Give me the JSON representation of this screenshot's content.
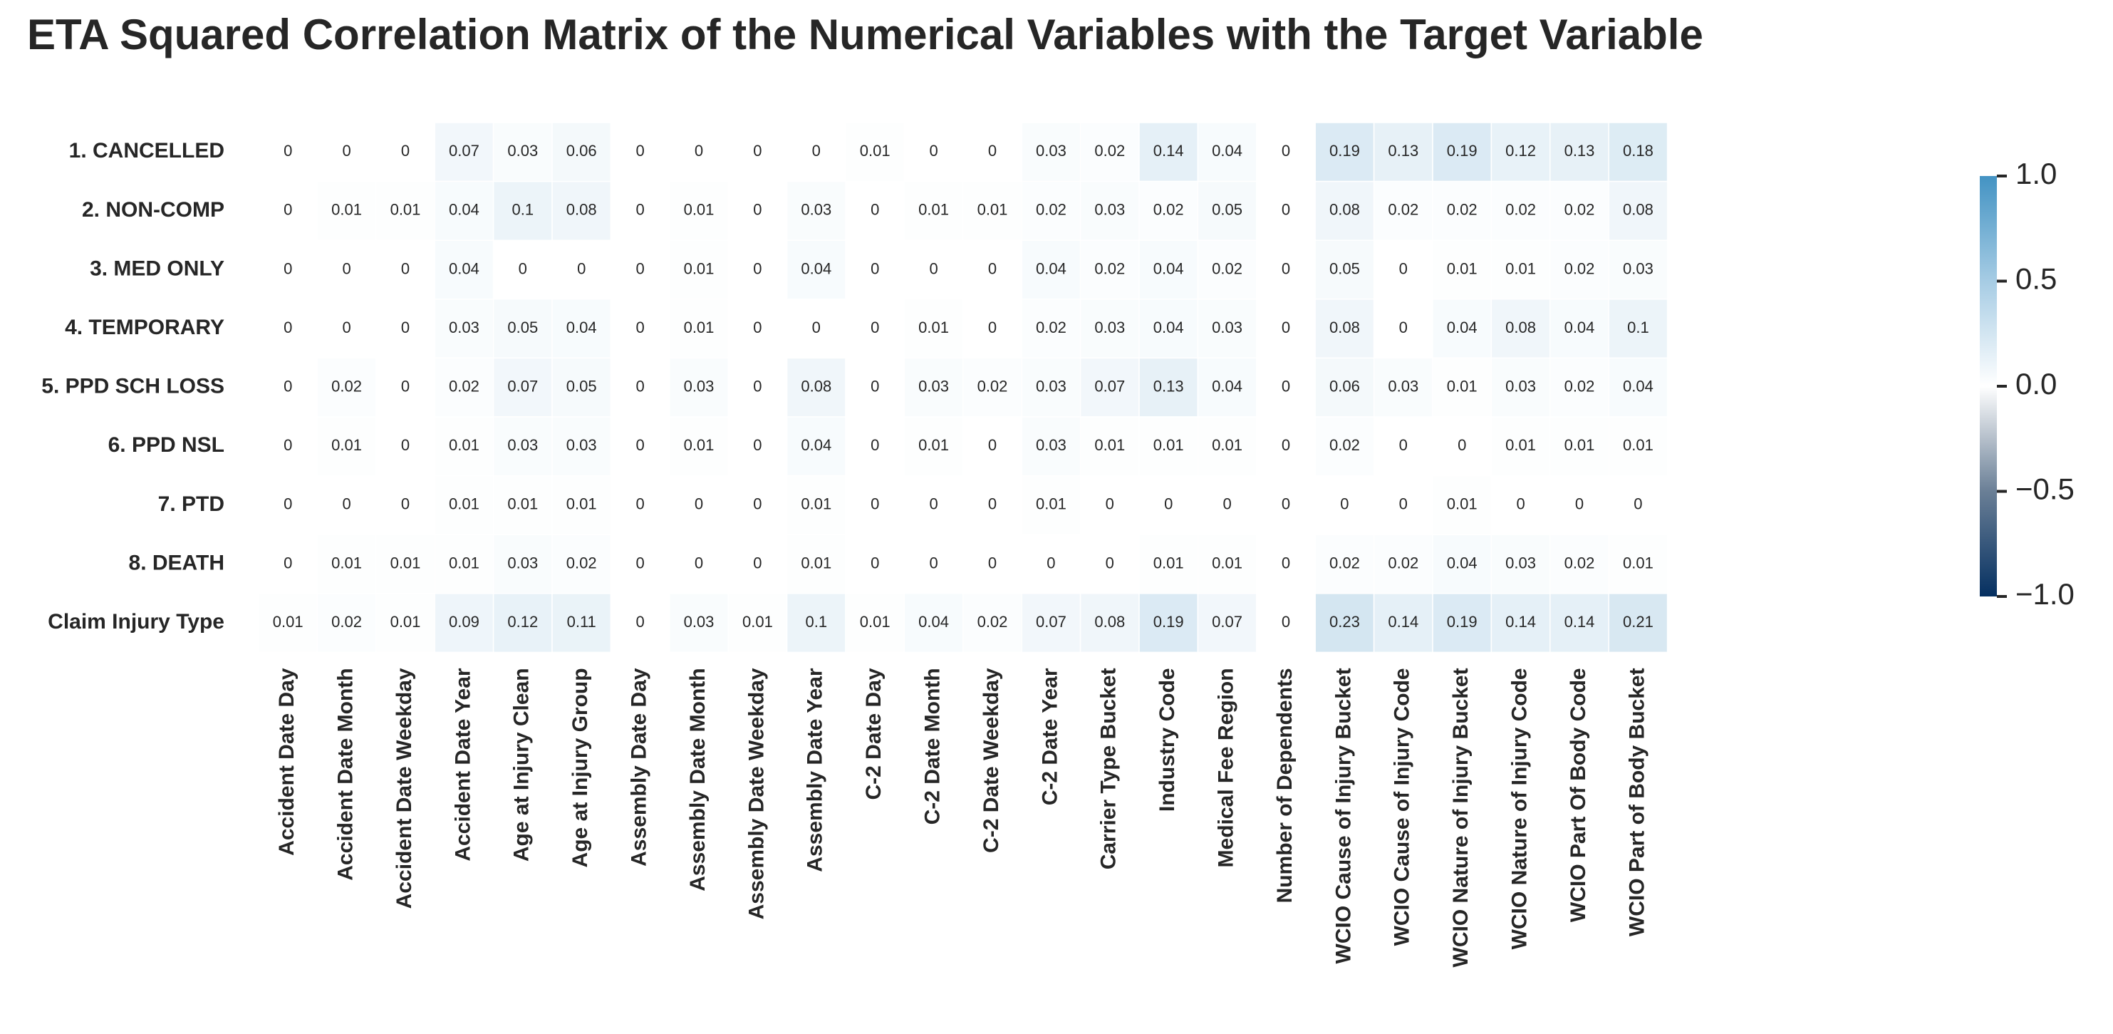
{
  "chart_data": {
    "type": "heatmap",
    "title": "ETA Squared Correlation Matrix of the Numerical Variables with the Target Variable",
    "rows": [
      "1. CANCELLED",
      "2. NON-COMP",
      "3. MED ONLY",
      "4. TEMPORARY",
      "5. PPD SCH LOSS",
      "6. PPD NSL",
      "7. PTD",
      "8. DEATH",
      "Claim Injury Type"
    ],
    "columns": [
      "Accident Date Day",
      "Accident Date Month",
      "Accident Date Weekday",
      "Accident Date Year",
      "Age at Injury Clean",
      "Age at Injury Group",
      "Assembly Date Day",
      "Assembly Date Month",
      "Assembly Date Weekday",
      "Assembly Date Year",
      "C-2 Date Day",
      "C-2 Date Month",
      "C-2 Date Weekday",
      "C-2 Date Year",
      "Carrier Type Bucket",
      "Industry Code",
      "Medical Fee Region",
      "Number of Dependents",
      "WCIO Cause of Injury Bucket",
      "WCIO Cause of Injury Code",
      "WCIO Nature of Injury Bucket",
      "WCIO Nature of Injury Code",
      "WCIO Part Of Body Code",
      "WCIO Part of Body Bucket"
    ],
    "values": [
      [
        0,
        0,
        0,
        0.07,
        0.03,
        0.06,
        0,
        0,
        0,
        0,
        0.01,
        0,
        0,
        0.03,
        0.02,
        0.14,
        0.04,
        0,
        0.19,
        0.13,
        0.19,
        0.12,
        0.13,
        0.18
      ],
      [
        0,
        0.01,
        0.01,
        0.04,
        0.1,
        0.08,
        0,
        0.01,
        0,
        0.03,
        0,
        0.01,
        0.01,
        0.02,
        0.03,
        0.02,
        0.05,
        0,
        0.08,
        0.02,
        0.02,
        0.02,
        0.02,
        0.08
      ],
      [
        0,
        0,
        0,
        0.04,
        0,
        0,
        0,
        0.01,
        0,
        0.04,
        0,
        0,
        0,
        0.04,
        0.02,
        0.04,
        0.02,
        0,
        0.05,
        0,
        0.01,
        0.01,
        0.02,
        0.03
      ],
      [
        0,
        0,
        0,
        0.03,
        0.05,
        0.04,
        0,
        0.01,
        0,
        0,
        0,
        0.01,
        0,
        0.02,
        0.03,
        0.04,
        0.03,
        0,
        0.08,
        0,
        0.04,
        0.08,
        0.04,
        0.1
      ],
      [
        0,
        0.02,
        0,
        0.02,
        0.07,
        0.05,
        0,
        0.03,
        0,
        0.08,
        0,
        0.03,
        0.02,
        0.03,
        0.07,
        0.13,
        0.04,
        0,
        0.06,
        0.03,
        0.01,
        0.03,
        0.02,
        0.04
      ],
      [
        0,
        0.01,
        0,
        0.01,
        0.03,
        0.03,
        0,
        0.01,
        0,
        0.04,
        0,
        0.01,
        0,
        0.03,
        0.01,
        0.01,
        0.01,
        0,
        0.02,
        0,
        0,
        0.01,
        0.01,
        0.01
      ],
      [
        0,
        0,
        0,
        0.01,
        0.01,
        0.01,
        0,
        0,
        0,
        0.01,
        0,
        0,
        0,
        0.01,
        0,
        0,
        0,
        0,
        0,
        0,
        0.01,
        0,
        0,
        0
      ],
      [
        0,
        0.01,
        0.01,
        0.01,
        0.03,
        0.02,
        0,
        0,
        0,
        0.01,
        0,
        0,
        0,
        0,
        0,
        0.01,
        0.01,
        0,
        0.02,
        0.02,
        0.04,
        0.03,
        0.02,
        0.01
      ],
      [
        0.01,
        0.02,
        0.01,
        0.09,
        0.12,
        0.11,
        0,
        0.03,
        0.01,
        0.1,
        0.01,
        0.04,
        0.02,
        0.07,
        0.08,
        0.19,
        0.07,
        0,
        0.23,
        0.14,
        0.19,
        0.14,
        0.14,
        0.21
      ]
    ],
    "vmin": -1.0,
    "vmax": 1.0,
    "colormap": [
      "#053061",
      "#ffffff",
      "#4393c3"
    ],
    "colorbar": {
      "ticks": [
        1.0,
        0.5,
        0.0,
        -0.5,
        -1.0
      ],
      "tick_labels": [
        "1.0",
        "0.5",
        "0.0",
        "−0.5",
        "−1.0"
      ],
      "placement": "right"
    },
    "xlabel": "",
    "ylabel": ""
  }
}
